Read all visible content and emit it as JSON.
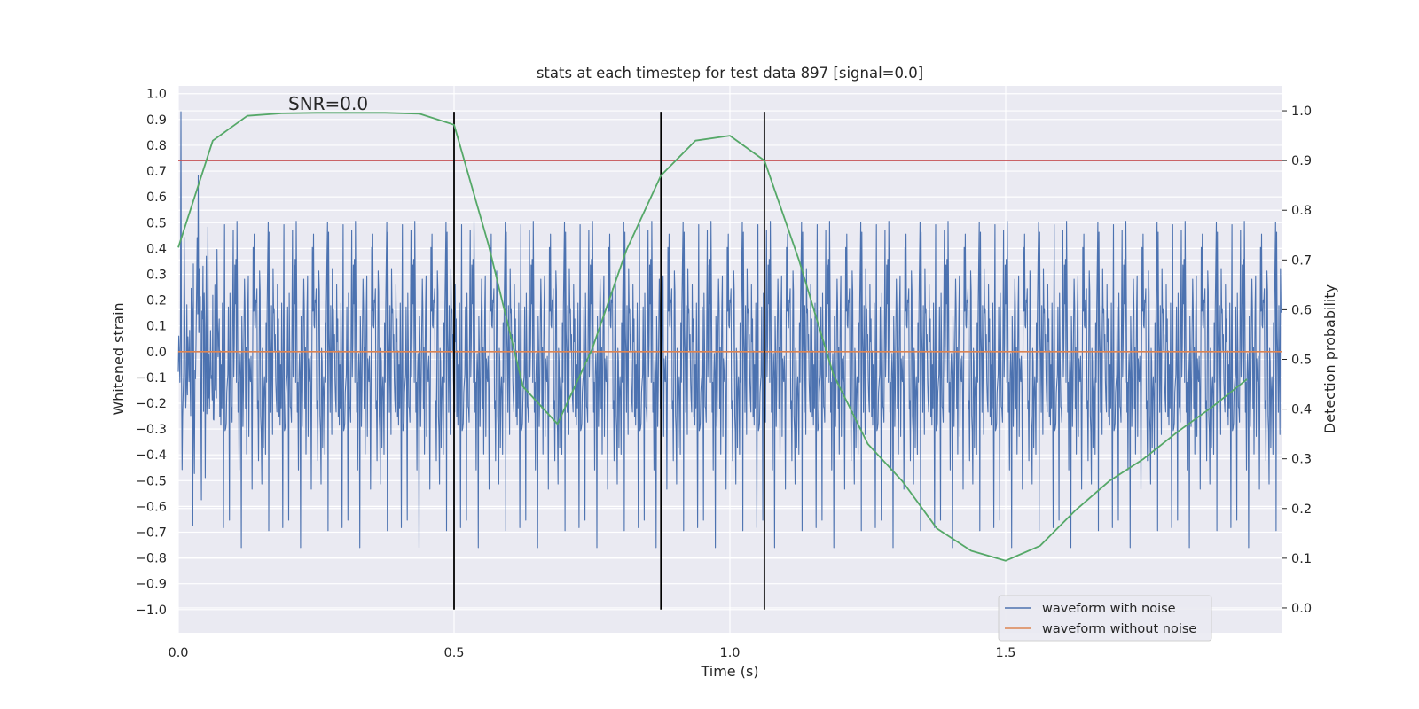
{
  "chart_data": {
    "type": "line",
    "title": "stats at each timestep for test data 897 [signal=0.0]",
    "xlabel": "Time (s)",
    "ylabel_left": "Whitened strain",
    "ylabel_right": "Detection probability",
    "xlim": [
      0.0,
      2.0
    ],
    "ylim_left": [
      -1.09,
      1.03
    ],
    "ylim_right": [
      -0.05,
      1.05
    ],
    "xticks": [
      0.0,
      0.5,
      1.0,
      1.5
    ],
    "xtick_labels": [
      "0.0",
      "0.5",
      "1.0",
      "1.5"
    ],
    "yticks_left": [
      -1.0,
      -0.9,
      -0.8,
      -0.7,
      -0.6,
      -0.5,
      -0.4,
      -0.3,
      -0.2,
      -0.1,
      0.0,
      0.1,
      0.2,
      0.3,
      0.4,
      0.5,
      0.6,
      0.7,
      0.8,
      0.9,
      1.0
    ],
    "ytick_labels_left": [
      "−1.0",
      "−0.9",
      "−0.8",
      "−0.7",
      "−0.6",
      "−0.5",
      "−0.4",
      "−0.3",
      "−0.2",
      "−0.1",
      "0.0",
      "0.1",
      "0.2",
      "0.3",
      "0.4",
      "0.5",
      "0.6",
      "0.7",
      "0.8",
      "0.9",
      "1.0"
    ],
    "yticks_right": [
      0.0,
      0.1,
      0.2,
      0.3,
      0.4,
      0.5,
      0.6,
      0.7,
      0.8,
      0.9,
      1.0
    ],
    "ytick_labels_right": [
      "0.0",
      "0.1",
      "0.2",
      "0.3",
      "0.4",
      "0.5",
      "0.6",
      "0.7",
      "0.8",
      "0.9",
      "1.0"
    ],
    "grid": true,
    "legend_position": "bottom-right",
    "annotation": "SNR=0.0",
    "series": [
      {
        "name": "waveform with noise",
        "axis": "left",
        "color": "#4c72b0",
        "kind": "noise",
        "sample_rate_hz": 1024,
        "approx_std": 0.3,
        "approx_range": [
          -1.0,
          0.93
        ]
      },
      {
        "name": "waveform without noise",
        "axis": "left",
        "color": "#dd8452",
        "x": [
          0.0,
          2.0
        ],
        "y": [
          0.0,
          0.0
        ]
      },
      {
        "name": "detection probability",
        "axis": "right",
        "color": "#55a868",
        "x": [
          0.0,
          0.0625,
          0.125,
          0.1875,
          0.25,
          0.3125,
          0.375,
          0.4375,
          0.5,
          0.5625,
          0.625,
          0.6875,
          0.75,
          0.8125,
          0.875,
          0.9375,
          1.0,
          1.0625,
          1.125,
          1.1875,
          1.25,
          1.3125,
          1.375,
          1.4375,
          1.5,
          1.5625,
          1.625,
          1.6875,
          1.75,
          1.8125,
          1.875,
          1.9375
        ],
        "y": [
          0.725,
          0.94,
          0.99,
          0.995,
          0.996,
          0.996,
          0.996,
          0.994,
          0.972,
          0.73,
          0.445,
          0.37,
          0.52,
          0.72,
          0.87,
          0.94,
          0.95,
          0.9,
          0.7,
          0.47,
          0.33,
          0.255,
          0.16,
          0.115,
          0.095,
          0.125,
          0.195,
          0.255,
          0.3,
          0.355,
          0.405,
          0.46
        ]
      }
    ],
    "threshold": {
      "axis": "right",
      "value": 0.9,
      "color": "#c44e52"
    },
    "event_markers": {
      "axis": "left",
      "x": [
        0.5,
        0.875,
        1.0625
      ],
      "y_range": [
        -1.0,
        0.93
      ],
      "color": "#000000"
    },
    "legend": [
      {
        "label": "waveform with noise",
        "color": "#4c72b0"
      },
      {
        "label": "waveform without noise",
        "color": "#dd8452"
      }
    ]
  }
}
